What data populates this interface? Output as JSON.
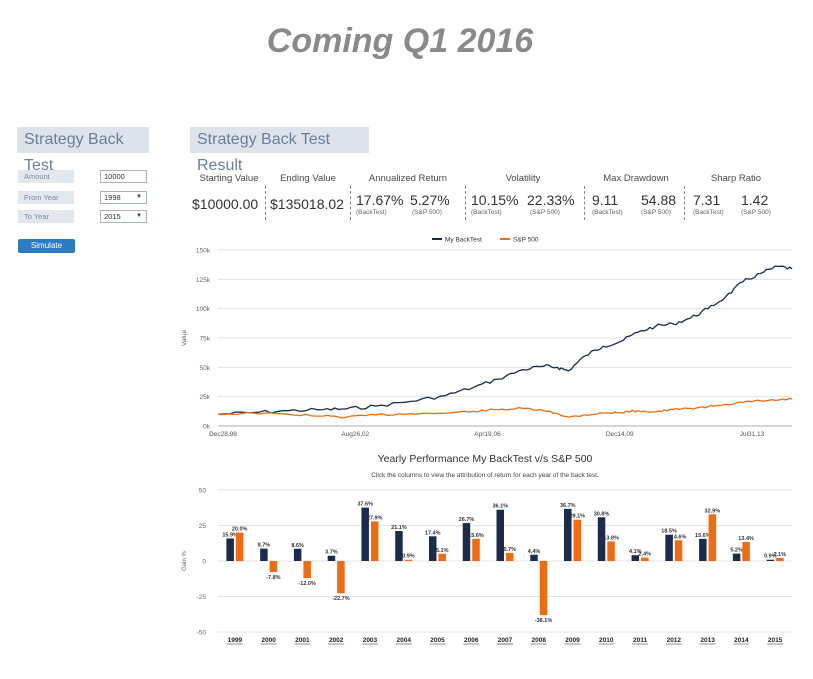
{
  "banner": "Coming Q1 2016",
  "left_panel": {
    "title": "Strategy Back Test",
    "fields": [
      {
        "label": "Amount",
        "value": "10000"
      },
      {
        "label": "From Year",
        "value": "1998"
      },
      {
        "label": "To Year",
        "value": "2015"
      }
    ],
    "simulate_label": "Simulate"
  },
  "result_panel": {
    "title": "Strategy Back Test Result",
    "stats": {
      "starting": {
        "head": "Starting Value",
        "value": "$10000.00"
      },
      "ending": {
        "head": "Ending Value",
        "value": "$135018.02"
      },
      "annualized": {
        "head": "Annualized Return",
        "a": "17.67%",
        "b": "5.27%",
        "a_sub": "(BackTest)",
        "b_sub": "(S&P 500)"
      },
      "volatility": {
        "head": "Volatility",
        "a": "10.15%",
        "b": "22.33%",
        "a_sub": "(BackTest)",
        "b_sub": "(S&P 500)"
      },
      "drawdown": {
        "head": "Max Drawdown",
        "a": "9.11",
        "b": "54.88",
        "a_sub": "(BackTest)",
        "b_sub": "(S&P 500)"
      },
      "sharp": {
        "head": "Sharp Ratio",
        "a": "7.31",
        "b": "1.42",
        "a_sub": "(BackTest)",
        "b_sub": "(S&P 500)"
      }
    }
  },
  "colors": {
    "backtest": "#1c2b4b",
    "sp500": "#f26b10",
    "grid": "#dddddd"
  },
  "chart_data": [
    {
      "type": "line",
      "legend": [
        "My BackTest",
        "S&P 500"
      ],
      "legend_placement": "top-center",
      "ylabel": "Value",
      "yticks": [
        "0k",
        "25k",
        "50k",
        "75k",
        "100k",
        "125k",
        "150k"
      ],
      "ylim": [
        0,
        150000
      ],
      "xticks": [
        "Dec28,98",
        "Aug26,02",
        "Apr19,06",
        "Dec14,09",
        "Jul31,13"
      ],
      "grid": true,
      "series": [
        {
          "name": "My BackTest",
          "x": [
            1998.99,
            2000.0,
            2001.0,
            2002.0,
            2002.65,
            2003.5,
            2004.5,
            2005.5,
            2006.3,
            2007.0,
            2007.7,
            2008.3,
            2008.7,
            2009.0,
            2009.5,
            2010.0,
            2010.5,
            2011.0,
            2011.5,
            2012.0,
            2012.5,
            2013.0,
            2013.5,
            2014.0,
            2014.5,
            2015.0,
            2015.4
          ],
          "values": [
            10000,
            11500,
            13000,
            14000,
            14500,
            17000,
            21000,
            26000,
            33000,
            40000,
            48000,
            51000,
            50000,
            47000,
            60000,
            68000,
            72000,
            80000,
            85000,
            87000,
            92000,
            100000,
            110000,
            123000,
            130000,
            136000,
            134000
          ]
        },
        {
          "name": "S&P 500",
          "x": [
            1998.99,
            2000.0,
            2001.0,
            2002.0,
            2002.65,
            2003.5,
            2004.5,
            2005.5,
            2006.3,
            2007.0,
            2007.7,
            2008.3,
            2008.7,
            2009.0,
            2009.5,
            2010.0,
            2010.5,
            2011.0,
            2011.5,
            2012.0,
            2012.5,
            2013.0,
            2013.5,
            2014.0,
            2014.5,
            2015.0,
            2015.4
          ],
          "values": [
            10000,
            11000,
            10000,
            8500,
            7500,
            9500,
            10500,
            11000,
            12500,
            14000,
            15000,
            13000,
            10500,
            7500,
            9500,
            11000,
            11500,
            13000,
            12000,
            14000,
            15000,
            16500,
            18500,
            20000,
            21500,
            22000,
            23000
          ]
        }
      ]
    },
    {
      "type": "bar",
      "title": "Yearly Performance My BackTest v/s S&P 500",
      "subtitle": "Click the columns to view the attribution of return for each year of the back test.",
      "ylabel": "Gain %",
      "yticks": [
        "50",
        "25",
        "0",
        "-25",
        "-50"
      ],
      "ylim": [
        -50,
        50
      ],
      "categories": [
        "1999",
        "2000",
        "2001",
        "2002",
        "2003",
        "2004",
        "2005",
        "2006",
        "2007",
        "2008",
        "2009",
        "2010",
        "2011",
        "2012",
        "2013",
        "2014",
        "2015"
      ],
      "series": [
        {
          "name": "My BackTest",
          "values": [
            15.9,
            8.7,
            8.6,
            3.7,
            37.6,
            21.1,
            17.4,
            26.7,
            36.1,
            4.4,
            36.7,
            30.8,
            4.1,
            18.5,
            15.6,
            5.2,
            0.9
          ],
          "labels": [
            "15.9%",
            "8.7%",
            "8.6%",
            "3.7%",
            "37.6%",
            "21.1%",
            "17.4%",
            "26.7%",
            "36.1%",
            "4.4%",
            "36.7%",
            "30.8%",
            "4.1%",
            "18.5%",
            "15.6%",
            "5.2%",
            "0.9%"
          ]
        },
        {
          "name": "S&P 500",
          "values": [
            20.0,
            -7.8,
            -12.0,
            -22.7,
            27.9,
            0.9,
            5.1,
            15.6,
            5.7,
            -38.1,
            29.1,
            13.8,
            2.4,
            14.6,
            32.9,
            13.4,
            2.1
          ],
          "labels": [
            "20.0%",
            "-7.8%",
            "-12.0%",
            "-22.7%",
            "27.9%",
            "0.9%",
            "5.1%",
            "15.6%",
            "5.7%",
            "-38.1%",
            "29.1%",
            "13.8%",
            "2.4%",
            "14.6%",
            "32.9%",
            "13.4%",
            "2.1%"
          ]
        }
      ]
    }
  ]
}
